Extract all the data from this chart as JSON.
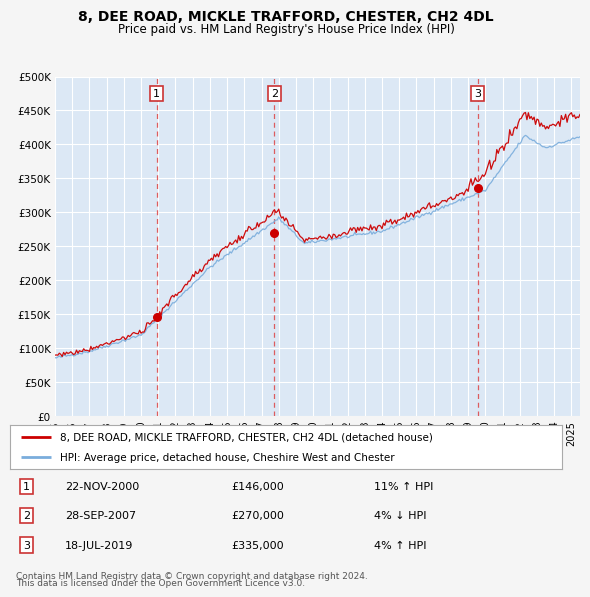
{
  "title": "8, DEE ROAD, MICKLE TRAFFORD, CHESTER, CH2 4DL",
  "subtitle": "Price paid vs. HM Land Registry's House Price Index (HPI)",
  "ylim": [
    0,
    500000
  ],
  "yticks": [
    0,
    50000,
    100000,
    150000,
    200000,
    250000,
    300000,
    350000,
    400000,
    450000,
    500000
  ],
  "ytick_labels": [
    "£0",
    "£50K",
    "£100K",
    "£150K",
    "£200K",
    "£250K",
    "£300K",
    "£350K",
    "£400K",
    "£450K",
    "£500K"
  ],
  "xlim_start": 1995.0,
  "xlim_end": 2025.5,
  "background_color": "#f5f5f5",
  "plot_bg_color": "#dce8f5",
  "grid_color": "#ffffff",
  "red_line_color": "#cc0000",
  "blue_line_color": "#7aaddc",
  "sale_marker_color": "#cc0000",
  "dashed_line_color": "#dd4444",
  "marker_box_color": "#cc3333",
  "sales": [
    {
      "n": 1,
      "year": 2000.9,
      "price": 146000,
      "date": "22-NOV-2000",
      "label": "£146,000",
      "pct": "11%",
      "dir": "↑"
    },
    {
      "n": 2,
      "year": 2007.75,
      "price": 270000,
      "date": "28-SEP-2007",
      "label": "£270,000",
      "pct": "4%",
      "dir": "↓"
    },
    {
      "n": 3,
      "year": 2019.55,
      "price": 335000,
      "date": "18-JUL-2019",
      "label": "£335,000",
      "pct": "4%",
      "dir": "↑"
    }
  ],
  "legend_line1": "8, DEE ROAD, MICKLE TRAFFORD, CHESTER, CH2 4DL (detached house)",
  "legend_line2": "HPI: Average price, detached house, Cheshire West and Chester",
  "footer_line1": "Contains HM Land Registry data © Crown copyright and database right 2024.",
  "footer_line2": "This data is licensed under the Open Government Licence v3.0."
}
